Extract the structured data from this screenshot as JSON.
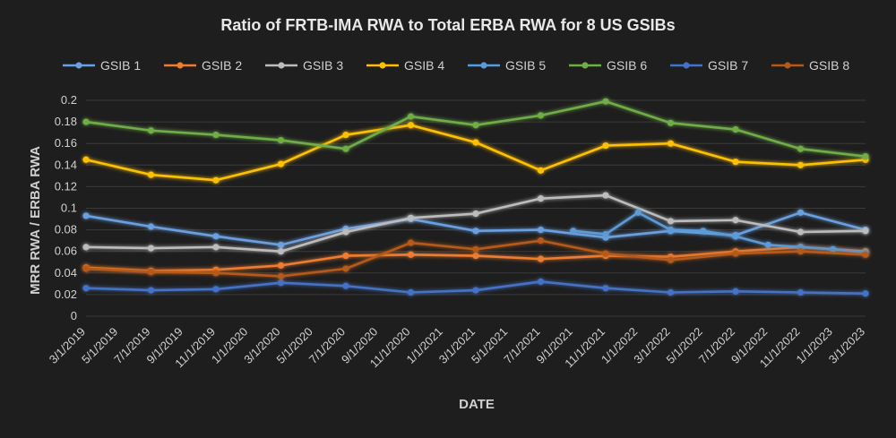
{
  "chart_data": {
    "type": "line",
    "title": "Ratio of FRTB-IMA RWA to Total ERBA RWA for 8 US GSIBs",
    "xlabel": "DATE",
    "ylabel": "MRR RWA / ERBA RWA",
    "ylim": [
      0,
      0.2
    ],
    "yticks": [
      "0",
      "0.02",
      "0.04",
      "0.06",
      "0.08",
      "0.1",
      "0.12",
      "0.14",
      "0.16",
      "0.18",
      "0.2"
    ],
    "grid": true,
    "legend_position": "top",
    "x": [
      "3/1/2019",
      "5/1/2019",
      "7/1/2019",
      "9/1/2019",
      "11/1/2019",
      "1/1/2020",
      "3/1/2020",
      "5/1/2020",
      "7/1/2020",
      "9/1/2020",
      "11/1/2020",
      "1/1/2021",
      "3/1/2021",
      "5/1/2021",
      "7/1/2021",
      "9/1/2021",
      "11/1/2021",
      "1/1/2022",
      "3/1/2022",
      "5/1/2022",
      "7/1/2022",
      "9/1/2022",
      "11/1/2022",
      "1/1/2023",
      "3/1/2023"
    ],
    "series": [
      {
        "name": "GSIB 1",
        "color": "#6a9fe0",
        "x": [
          "3/1/2019",
          "7/1/2019",
          "11/1/2019",
          "3/1/2020",
          "7/1/2020",
          "11/1/2020",
          "3/1/2021",
          "7/1/2021",
          "11/1/2021",
          "3/1/2022",
          "7/1/2022",
          "11/1/2022",
          "3/1/2023"
        ],
        "values": [
          0.093,
          0.083,
          0.074,
          0.066,
          0.081,
          0.09,
          0.079,
          0.08,
          0.073,
          0.079,
          0.075,
          0.096,
          0.08
        ]
      },
      {
        "name": "GSIB 2",
        "color": "#ed7d31",
        "x": [
          "3/1/2019",
          "7/1/2019",
          "11/1/2019",
          "3/1/2020",
          "7/1/2020",
          "11/1/2020",
          "3/1/2021",
          "7/1/2021",
          "11/1/2021",
          "3/1/2022",
          "7/1/2022",
          "11/1/2022",
          "3/1/2023"
        ],
        "values": [
          0.045,
          0.042,
          0.043,
          0.047,
          0.056,
          0.057,
          0.056,
          0.053,
          0.056,
          0.055,
          0.06,
          0.064,
          0.06
        ]
      },
      {
        "name": "GSIB 3",
        "color": "#bcbcbc",
        "x": [
          "3/1/2019",
          "7/1/2019",
          "11/1/2019",
          "3/1/2020",
          "7/1/2020",
          "11/1/2020",
          "3/1/2021",
          "7/1/2021",
          "11/1/2021",
          "3/1/2022",
          "7/1/2022",
          "11/1/2022",
          "3/1/2023"
        ],
        "values": [
          0.064,
          0.063,
          0.064,
          0.06,
          0.078,
          0.091,
          0.095,
          0.109,
          0.112,
          0.088,
          0.089,
          0.078,
          0.079
        ]
      },
      {
        "name": "GSIB 4",
        "color": "#ffc000",
        "x": [
          "3/1/2019",
          "7/1/2019",
          "11/1/2019",
          "3/1/2020",
          "7/1/2020",
          "11/1/2020",
          "3/1/2021",
          "7/1/2021",
          "11/1/2021",
          "3/1/2022",
          "7/1/2022",
          "11/1/2022",
          "3/1/2023"
        ],
        "values": [
          0.145,
          0.131,
          0.126,
          0.141,
          0.168,
          0.177,
          0.161,
          0.135,
          0.158,
          0.16,
          0.143,
          0.14,
          0.145
        ]
      },
      {
        "name": "GSIB 5",
        "color": "#5b9bd5",
        "x": [
          "9/1/2021",
          "11/1/2021",
          "1/1/2022",
          "3/1/2022",
          "5/1/2022",
          "7/1/2022",
          "9/1/2022",
          "11/1/2022",
          "1/1/2023",
          "3/1/2023"
        ],
        "values": [
          0.079,
          0.076,
          0.096,
          0.08,
          0.079,
          0.074,
          0.066,
          0.064,
          0.062,
          0.059
        ]
      },
      {
        "name": "GSIB 6",
        "color": "#70ad47",
        "x": [
          "3/1/2019",
          "7/1/2019",
          "11/1/2019",
          "3/1/2020",
          "7/1/2020",
          "11/1/2020",
          "3/1/2021",
          "7/1/2021",
          "11/1/2021",
          "3/1/2022",
          "7/1/2022",
          "11/1/2022",
          "3/1/2023"
        ],
        "values": [
          0.18,
          0.172,
          0.168,
          0.163,
          0.155,
          0.185,
          0.177,
          0.186,
          0.199,
          0.179,
          0.173,
          0.155,
          0.148
        ]
      },
      {
        "name": "GSIB 7",
        "color": "#4472c4",
        "x": [
          "3/1/2019",
          "7/1/2019",
          "11/1/2019",
          "3/1/2020",
          "7/1/2020",
          "11/1/2020",
          "3/1/2021",
          "7/1/2021",
          "11/1/2021",
          "3/1/2022",
          "7/1/2022",
          "11/1/2022",
          "3/1/2023"
        ],
        "values": [
          0.026,
          0.024,
          0.025,
          0.031,
          0.028,
          0.022,
          0.024,
          0.032,
          0.026,
          0.022,
          0.023,
          0.022,
          0.021
        ]
      },
      {
        "name": "GSIB 8",
        "color": "#b35a1a",
        "x": [
          "3/1/2019",
          "7/1/2019",
          "11/1/2019",
          "3/1/2020",
          "7/1/2020",
          "11/1/2020",
          "3/1/2021",
          "7/1/2021",
          "11/1/2021",
          "3/1/2022",
          "7/1/2022",
          "11/1/2022",
          "3/1/2023"
        ],
        "values": [
          0.044,
          0.041,
          0.04,
          0.037,
          0.044,
          0.068,
          0.062,
          0.07,
          0.058,
          0.052,
          0.058,
          0.06,
          0.057
        ]
      }
    ]
  }
}
